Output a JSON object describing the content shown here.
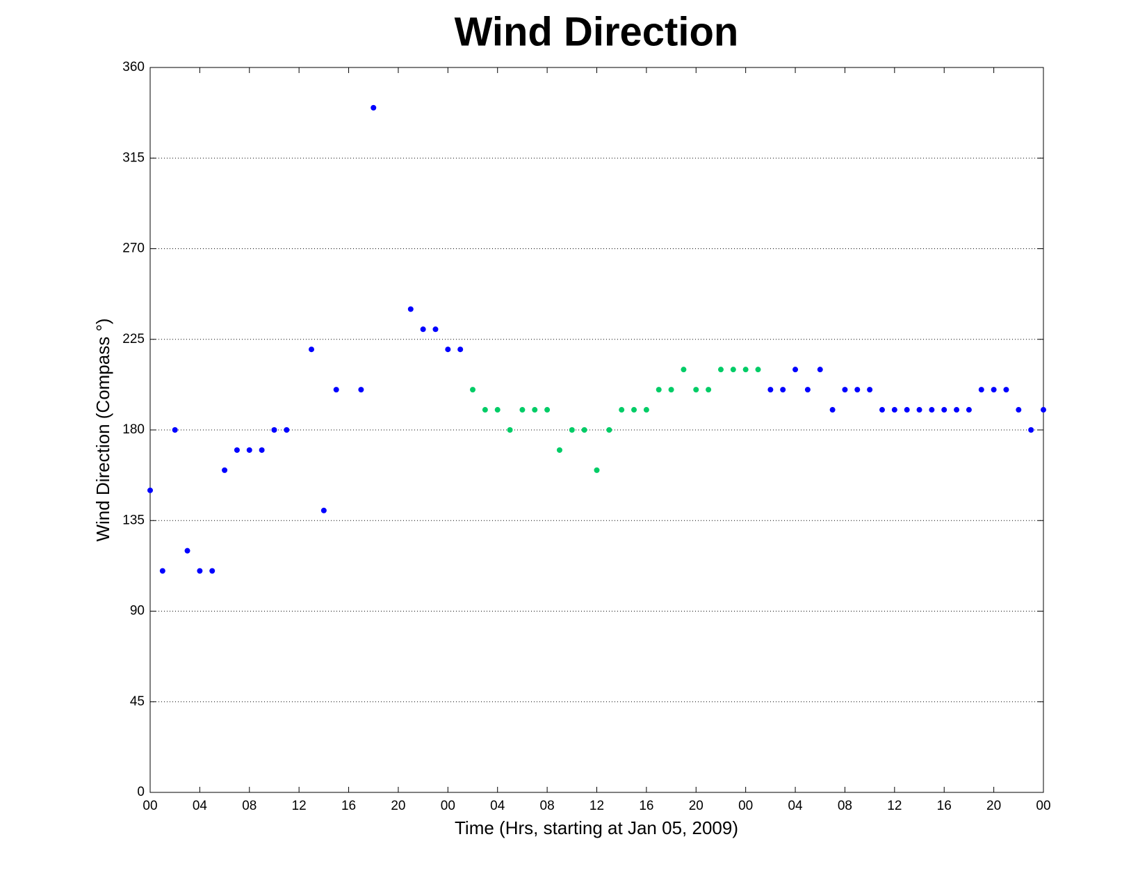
{
  "chart_data": {
    "type": "scatter",
    "title": "Wind Direction",
    "x_label": "Time (Hrs, starting at Jan 05, 2009)",
    "y_label": "Wind Direction (Compass °)",
    "xlim": [
      0,
      72
    ],
    "xticks": [
      {
        "value": 0,
        "label": "00"
      },
      {
        "value": 4,
        "label": "04"
      },
      {
        "value": 8,
        "label": "08"
      },
      {
        "value": 12,
        "label": "12"
      },
      {
        "value": 16,
        "label": "16"
      },
      {
        "value": 20,
        "label": "20"
      },
      {
        "value": 24,
        "label": "00"
      },
      {
        "value": 28,
        "label": "04"
      },
      {
        "value": 32,
        "label": "08"
      },
      {
        "value": 36,
        "label": "12"
      },
      {
        "value": 40,
        "label": "16"
      },
      {
        "value": 44,
        "label": "20"
      },
      {
        "value": 48,
        "label": "00"
      },
      {
        "value": 52,
        "label": "04"
      },
      {
        "value": 56,
        "label": "08"
      },
      {
        "value": 60,
        "label": "12"
      },
      {
        "value": 64,
        "label": "16"
      },
      {
        "value": 68,
        "label": "20"
      },
      {
        "value": 72,
        "label": "00"
      }
    ],
    "ylim": [
      0,
      360
    ],
    "yticks": [
      0,
      45,
      90,
      135,
      180,
      225,
      270,
      315,
      360
    ],
    "grid": true,
    "series": [
      {
        "color": "#0000ff",
        "x": [
          0,
          1,
          2,
          3,
          4,
          5,
          6,
          7,
          8,
          9,
          10,
          11,
          13,
          14,
          15,
          17,
          18,
          21,
          22,
          23,
          24,
          25,
          50,
          51,
          52,
          53,
          54,
          55,
          56,
          57,
          58,
          59,
          60,
          61,
          62,
          63,
          64,
          65,
          66,
          67,
          68,
          69,
          70,
          71,
          72
        ],
        "values": [
          150,
          110,
          180,
          120,
          110,
          110,
          160,
          170,
          170,
          170,
          180,
          180,
          220,
          140,
          200,
          200,
          340,
          240,
          230,
          230,
          220,
          220,
          200,
          200,
          210,
          200,
          210,
          190,
          200,
          200,
          200,
          190,
          190,
          190,
          190,
          190,
          190,
          190,
          190,
          200,
          200,
          200,
          190,
          180,
          190
        ]
      },
      {
        "color": "#00cc66",
        "x": [
          26,
          27,
          28,
          29,
          30,
          31,
          32,
          33,
          34,
          35,
          36,
          37,
          38,
          39,
          40,
          41,
          42,
          43,
          44,
          45,
          46,
          47,
          48,
          49
        ],
        "values": [
          200,
          190,
          190,
          180,
          190,
          190,
          190,
          170,
          180,
          180,
          160,
          180,
          190,
          190,
          190,
          200,
          200,
          210,
          200,
          200,
          210,
          210,
          210,
          210
        ]
      }
    ]
  }
}
